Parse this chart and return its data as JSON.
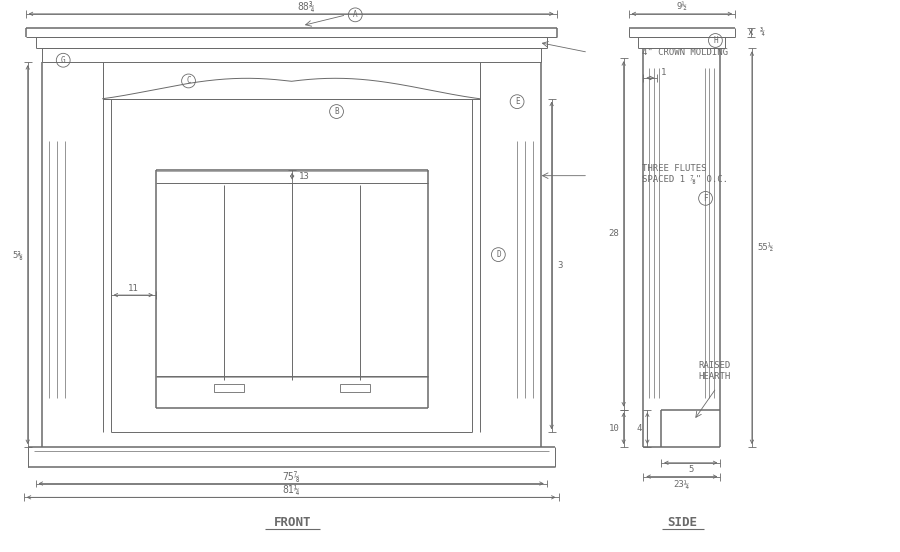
{
  "bg_color": "#ffffff",
  "line_color": "#6a6a6a",
  "lw": 0.7,
  "lw_thick": 1.1,
  "dims": {
    "top_width": "88¾",
    "base_width1": "75⅞",
    "base_width2": "81¼",
    "height_left": "5⅜",
    "height_right": "3",
    "dim_13": "13",
    "dim_11": "11",
    "dim_28": "28",
    "dim_10": "10",
    "dim_1": "1",
    "dim_4": "4",
    "dim_5": "5",
    "side_width": "23¼",
    "side_top": "9½",
    "side_height": "¾",
    "total_height": "55½",
    "crown_text": "4\" CROWN MOLDING",
    "flute_text": "THREE FLUTES\nSPACED 1 ⅞\" O.C.",
    "raised_hearth": "RAISED\nHEARTH"
  },
  "labels": [
    "A",
    "B",
    "C",
    "D",
    "E",
    "F",
    "G",
    "H"
  ],
  "title_front": "FRONT",
  "title_side": "SIDE"
}
